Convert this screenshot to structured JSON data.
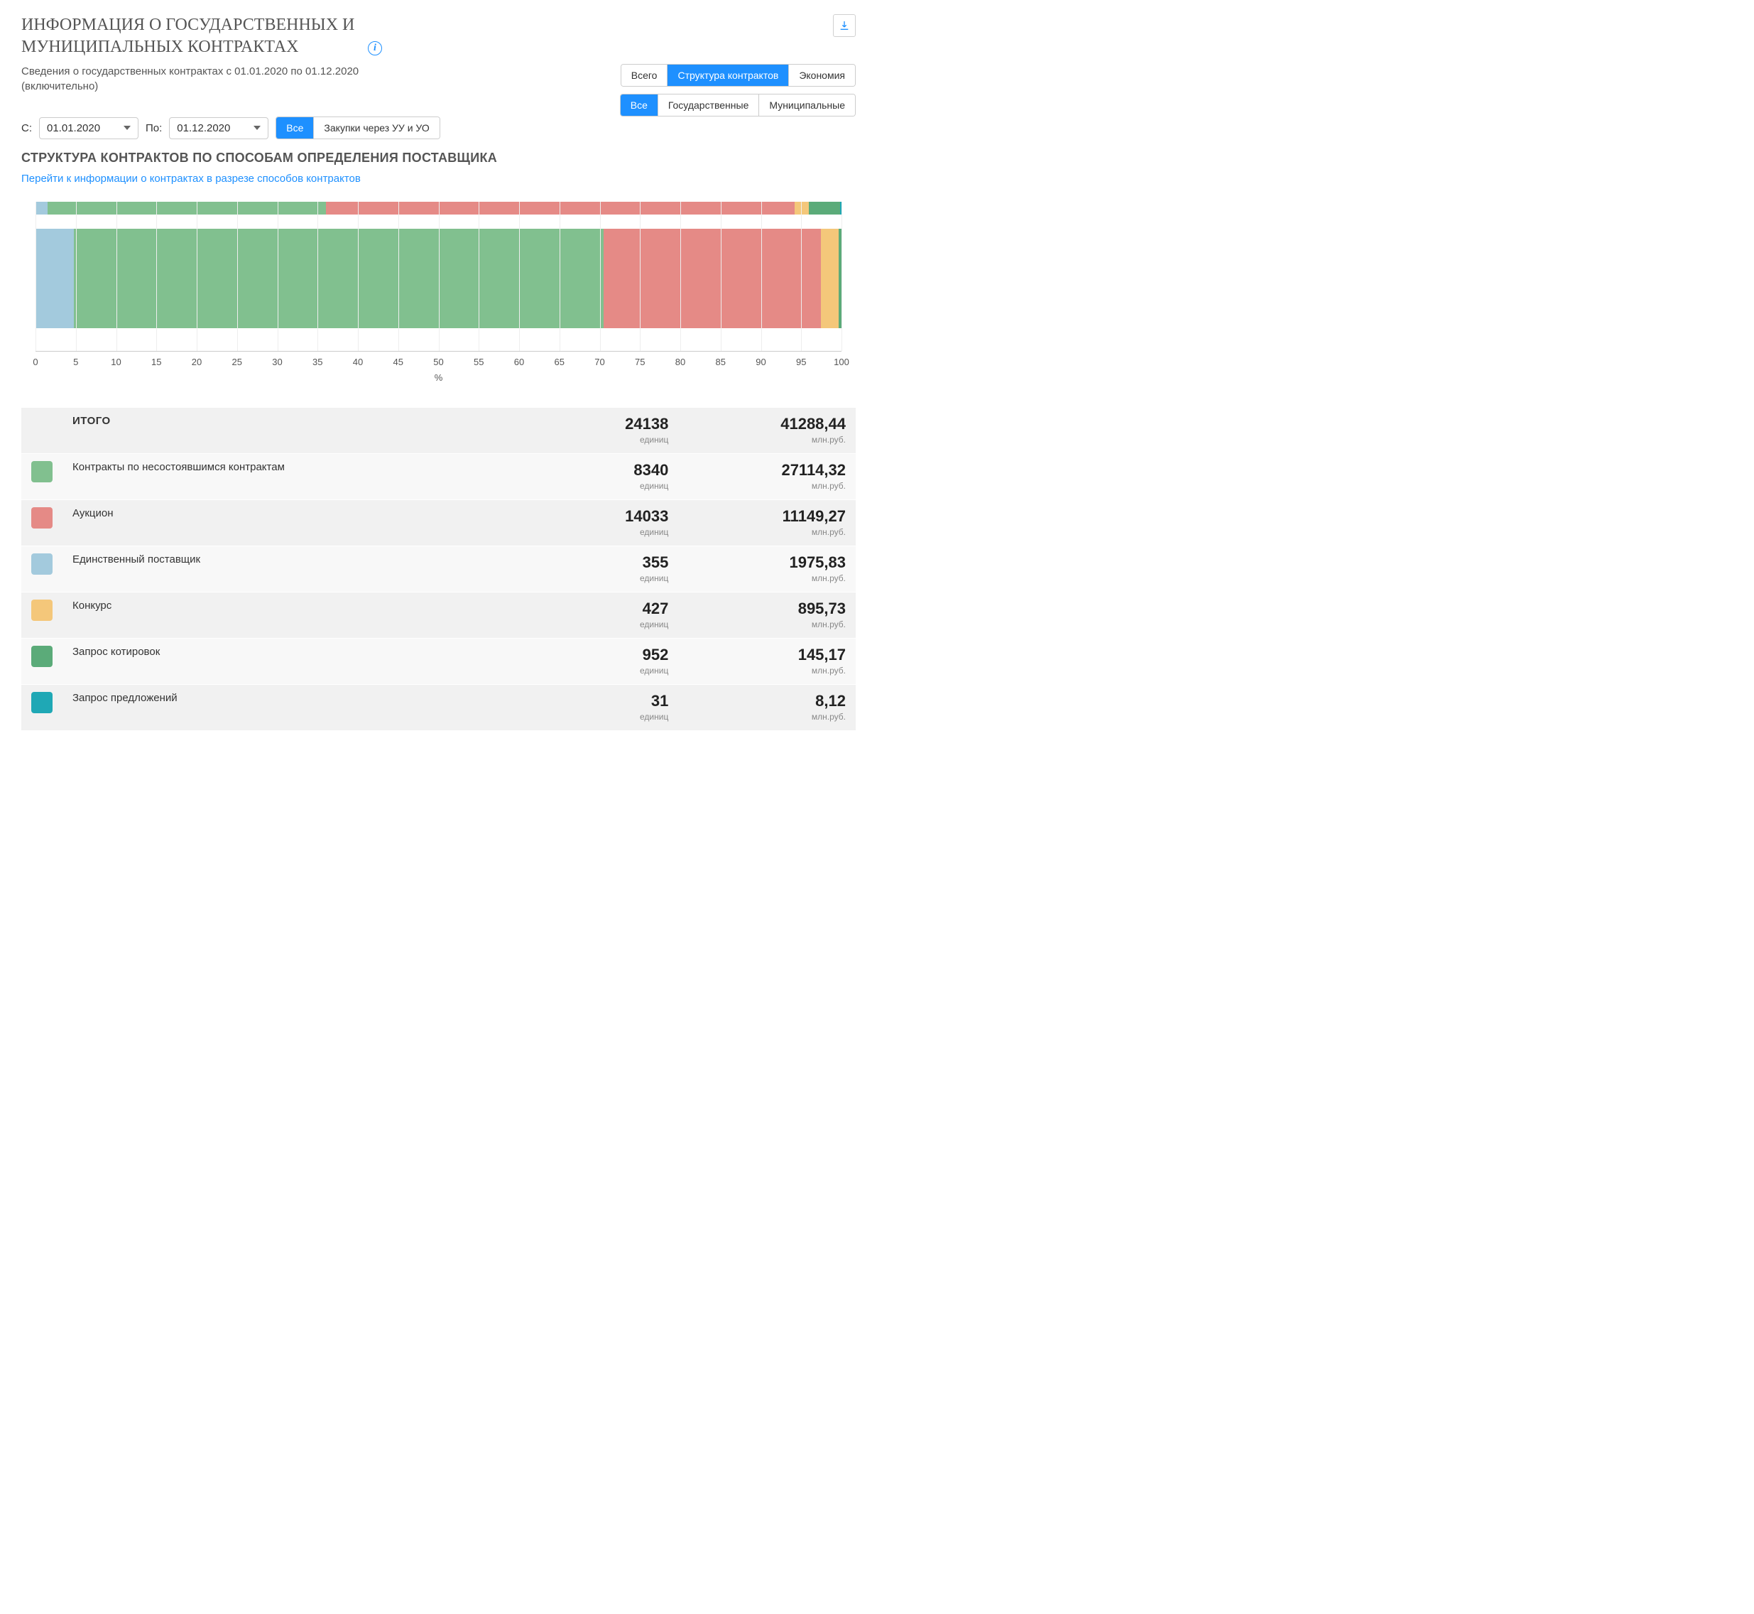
{
  "header": {
    "title": "ИНФОРМАЦИЯ О ГОСУДАРСТВЕННЫХ И МУНИЦИПАЛЬНЫХ КОНТРАКТАХ",
    "subtitle": "Сведения о государственных контрактах с 01.01.2020 по 01.12.2020 (включительно)"
  },
  "toggles": {
    "row1": [
      {
        "label": "Всего",
        "active": false
      },
      {
        "label": "Структура контрактов",
        "active": true
      },
      {
        "label": "Экономия",
        "active": false
      }
    ],
    "row2": [
      {
        "label": "Все",
        "active": true
      },
      {
        "label": "Государственные",
        "active": false
      },
      {
        "label": "Муниципальные",
        "active": false
      }
    ]
  },
  "filters": {
    "from_label": "С:",
    "from_value": "01.01.2020",
    "to_label": "По:",
    "to_value": "01.12.2020",
    "scope": [
      {
        "label": "Все",
        "active": true
      },
      {
        "label": "Закупки через УУ и УО",
        "active": false
      }
    ]
  },
  "section": {
    "title": "СТРУКТУРА КОНТРАКТОВ ПО СПОСОБАМ ОПРЕДЕЛЕНИЯ ПОСТАВЩИКА",
    "link": "Перейти к информации о контрактах в разрезе способов контрактов"
  },
  "chart": {
    "type": "stacked-bar-horizontal",
    "xlim": [
      0,
      100
    ],
    "xtick_step": 5,
    "axis_label": "%",
    "grid_color": "#eeeeee",
    "background_color": "#ffffff",
    "thin_bar": {
      "segments": [
        {
          "width_pct": 1.47,
          "color": "#a3cadd"
        },
        {
          "width_pct": 34.55,
          "color": "#81c08f"
        },
        {
          "width_pct": 58.14,
          "color": "#e58a86"
        },
        {
          "width_pct": 1.77,
          "color": "#f4c77a"
        },
        {
          "width_pct": 3.94,
          "color": "#5bab79"
        },
        {
          "width_pct": 0.13,
          "color": "#1fa8b5"
        }
      ]
    },
    "fat_bar": {
      "segments": [
        {
          "width_pct": 4.79,
          "color": "#a3cadd"
        },
        {
          "width_pct": 65.67,
          "color": "#81c08f"
        },
        {
          "width_pct": 27.0,
          "color": "#e58a86"
        },
        {
          "width_pct": 2.17,
          "color": "#f4c77a"
        },
        {
          "width_pct": 0.35,
          "color": "#5bab79"
        },
        {
          "width_pct": 0.02,
          "color": "#1fa8b5"
        }
      ]
    }
  },
  "table": {
    "unit_count": "единиц",
    "unit_money": "млн.руб.",
    "total": {
      "label": "ИТОГО",
      "count": "24138",
      "money": "41288,44"
    },
    "rows": [
      {
        "color": "#81c08f",
        "label": "Контракты по несостоявшимся контрактам",
        "count": "8340",
        "money": "27114,32"
      },
      {
        "color": "#e58a86",
        "label": "Аукцион",
        "count": "14033",
        "money": "11149,27"
      },
      {
        "color": "#a3cadd",
        "label": "Единственный поставщик",
        "count": "355",
        "money": "1975,83"
      },
      {
        "color": "#f4c77a",
        "label": "Конкурс",
        "count": "427",
        "money": "895,73"
      },
      {
        "color": "#5bab79",
        "label": "Запрос котировок",
        "count": "952",
        "money": "145,17"
      },
      {
        "color": "#1fa8b5",
        "label": "Запрос предложений",
        "count": "31",
        "money": "8,12"
      }
    ]
  },
  "colors": {
    "accent": "#1e90ff"
  }
}
